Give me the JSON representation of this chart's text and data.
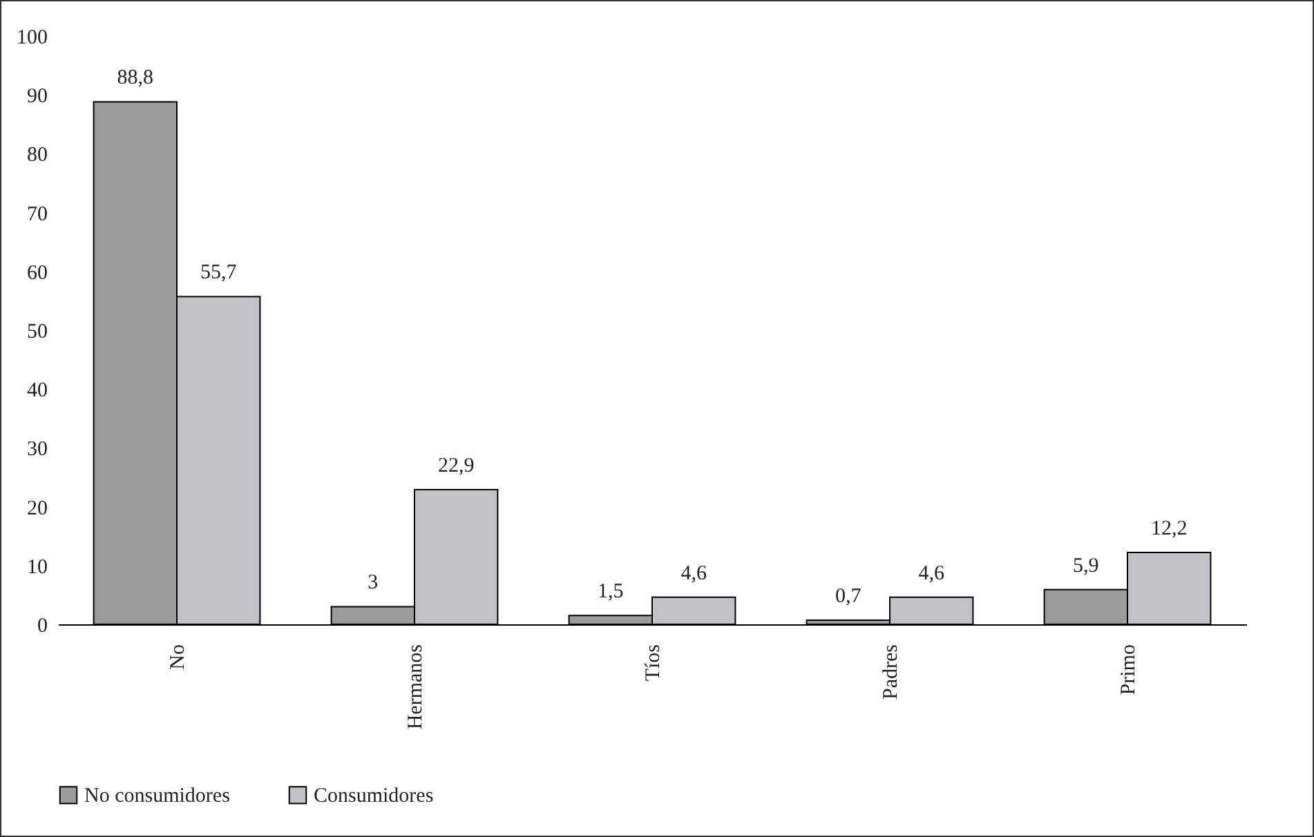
{
  "chart_data": {
    "type": "bar",
    "categories": [
      "No",
      "Hermanos",
      "Tíos",
      "Padres",
      "Primo"
    ],
    "series": [
      {
        "name": "No consumidores",
        "color": "#9b9b9b",
        "values": [
          88.8,
          3,
          1.5,
          0.7,
          5.9
        ],
        "value_labels": [
          "88,8",
          "3",
          "1,5",
          "0,7",
          "5,9"
        ]
      },
      {
        "name": "Consumidores",
        "color": "#c2c2c6",
        "values": [
          55.7,
          22.9,
          4.6,
          4.6,
          12.2
        ],
        "value_labels": [
          "55,7",
          "22,9",
          "4,6",
          "4,6",
          "12,2"
        ]
      }
    ],
    "ylim": [
      0,
      100
    ],
    "yticks": [
      0,
      10,
      20,
      30,
      40,
      50,
      60,
      70,
      80,
      90,
      100
    ],
    "grid": false,
    "legend": "bottom"
  }
}
